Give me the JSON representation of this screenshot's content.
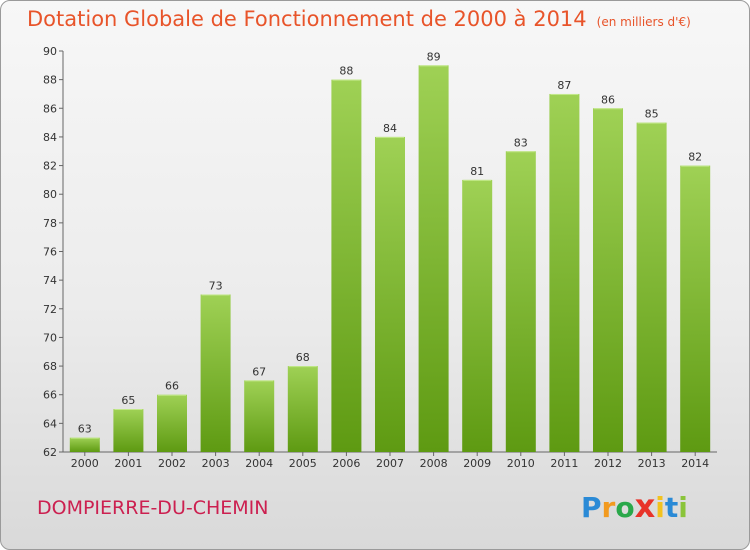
{
  "title": "Dotation Globale de Fonctionnement de 2000 à 2014",
  "unit": "(en milliers d'€)",
  "commune": "DOMPIERRE-DU-CHEMIN",
  "logo": {
    "letters": [
      "P",
      "r",
      "o",
      "x",
      "i",
      "t",
      "i"
    ],
    "colors": [
      "#2a8ad6",
      "#f29a1f",
      "#2aa84a",
      "#e8332a",
      "#f2c21f",
      "#2a8ad6",
      "#8ac43a"
    ]
  },
  "colors": {
    "bar_top": "#9fd155",
    "bar_bottom": "#5e9a12",
    "title": "#e8542a",
    "commune": "#cc2050"
  },
  "chart_data": {
    "type": "bar",
    "title": "Dotation Globale de Fonctionnement de 2000 à 2014",
    "ylabel": "(en milliers d'€)",
    "categories": [
      "2000",
      "2001",
      "2002",
      "2003",
      "2004",
      "2005",
      "2006",
      "2007",
      "2008",
      "2009",
      "2010",
      "2011",
      "2012",
      "2013",
      "2014"
    ],
    "values": [
      63,
      65,
      66,
      73,
      67,
      68,
      88,
      84,
      89,
      81,
      83,
      87,
      86,
      85,
      82
    ],
    "ylim": [
      62,
      90
    ],
    "yticks": [
      62,
      64,
      66,
      68,
      70,
      72,
      74,
      76,
      78,
      80,
      82,
      84,
      86,
      88,
      90
    ],
    "grid": false
  }
}
